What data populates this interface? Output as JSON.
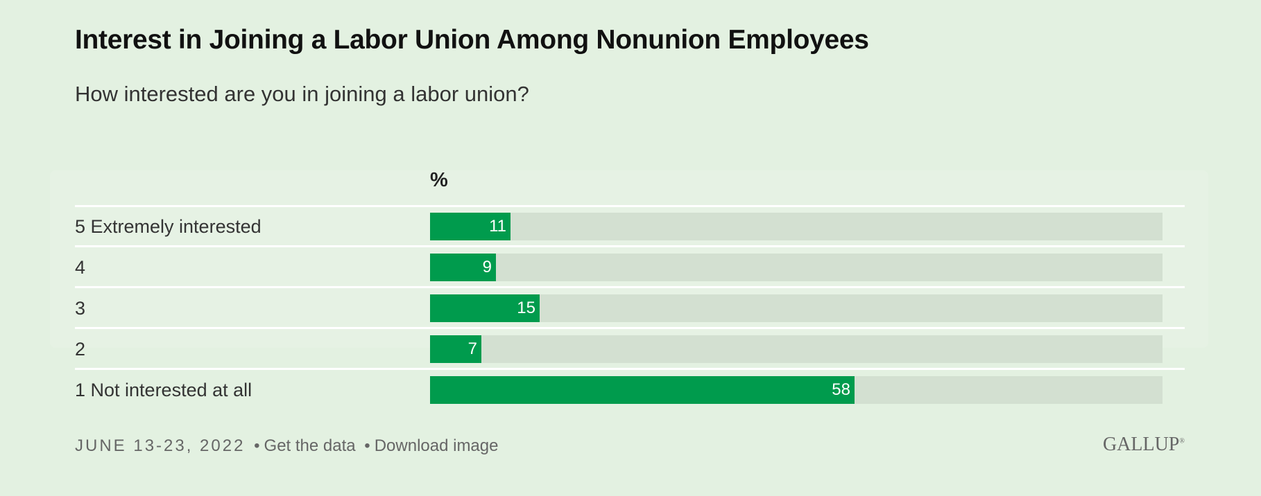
{
  "title": "Interest in Joining a Labor Union Among Nonunion Employees",
  "subtitle": "How interested are you in joining a labor union?",
  "chart_data": {
    "type": "bar",
    "orientation": "horizontal",
    "unit_label": "%",
    "categories": [
      "5 Extremely interested",
      "4",
      "3",
      "2",
      "1 Not interested at all"
    ],
    "values": [
      11,
      9,
      15,
      7,
      58
    ],
    "xlim": [
      0,
      100
    ],
    "grid": false,
    "legend": "none"
  },
  "colors": {
    "background": "#e3f1e1",
    "bar": "#009b4d",
    "track": "#d3e0d1",
    "value_label": "#ffffff"
  },
  "footer": {
    "date": "JUNE 13-23, 2022",
    "separator": "•",
    "get_data": "Get the data",
    "download": "Download image"
  },
  "logo": "GALLUP"
}
